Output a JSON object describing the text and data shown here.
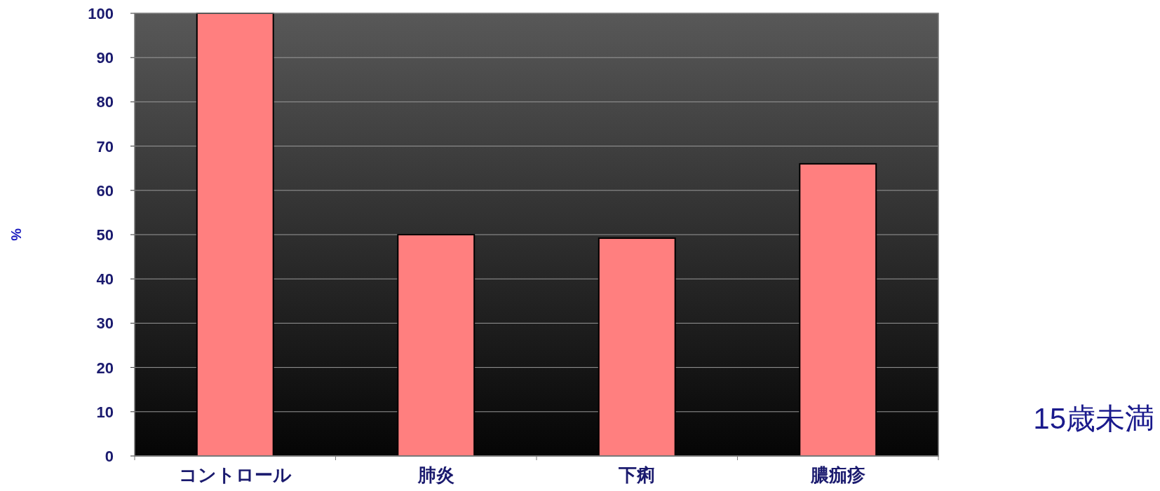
{
  "chart_data": {
    "type": "bar",
    "ylabel": "%",
    "categories": [
      "コントロール",
      "肺炎",
      "下痢",
      "膿痂疹"
    ],
    "values": [
      100,
      50,
      49.2,
      66
    ],
    "color": "#ff7f7f",
    "ylim": [
      0,
      100
    ],
    "yticks": [
      0,
      10,
      20,
      30,
      40,
      50,
      60,
      70,
      80,
      90,
      100
    ],
    "grid": "y",
    "annotations": [
      "15歳未満"
    ]
  }
}
